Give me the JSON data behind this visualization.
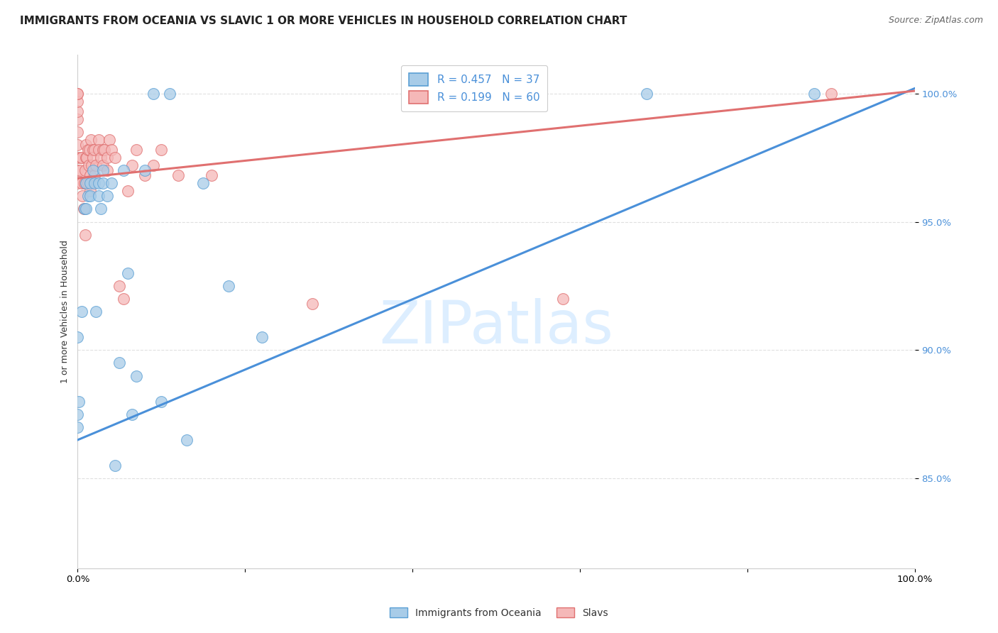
{
  "title": "IMMIGRANTS FROM OCEANIA VS SLAVIC 1 OR MORE VEHICLES IN HOUSEHOLD CORRELATION CHART",
  "source": "Source: ZipAtlas.com",
  "ylabel": "1 or more Vehicles in Household",
  "watermark": "ZIPatlas",
  "xlim": [
    0.0,
    1.0
  ],
  "ylim": [
    0.815,
    1.015
  ],
  "yticks": [
    0.85,
    0.9,
    0.95,
    1.0
  ],
  "ytick_labels": [
    "85.0%",
    "90.0%",
    "95.0%",
    "100.0%"
  ],
  "xticks": [
    0.0,
    0.2,
    0.4,
    0.6,
    0.8,
    1.0
  ],
  "xtick_labels": [
    "0.0%",
    "",
    "",
    "",
    "",
    "100.0%"
  ],
  "legend1_label": "R = 0.457   N = 37",
  "legend2_label": "R = 0.199   N = 60",
  "blue_color": "#a8cce8",
  "pink_color": "#f5b8b8",
  "blue_edge_color": "#5a9fd4",
  "pink_edge_color": "#e07070",
  "blue_line_color": "#4a90d9",
  "pink_line_color": "#e07070",
  "blue_label_color": "#4a90d9",
  "blue_scatter_x": [
    0.0,
    0.0,
    0.0,
    0.001,
    0.005,
    0.008,
    0.01,
    0.01,
    0.012,
    0.015,
    0.015,
    0.018,
    0.02,
    0.022,
    0.025,
    0.025,
    0.028,
    0.03,
    0.03,
    0.035,
    0.04,
    0.045,
    0.05,
    0.055,
    0.06,
    0.065,
    0.07,
    0.08,
    0.09,
    0.1,
    0.11,
    0.13,
    0.15,
    0.18,
    0.22,
    0.68,
    0.88
  ],
  "blue_scatter_y": [
    0.905,
    0.875,
    0.87,
    0.88,
    0.915,
    0.955,
    0.955,
    0.965,
    0.96,
    0.96,
    0.965,
    0.97,
    0.965,
    0.915,
    0.965,
    0.96,
    0.955,
    0.97,
    0.965,
    0.96,
    0.965,
    0.855,
    0.895,
    0.97,
    0.93,
    0.875,
    0.89,
    0.97,
    1.0,
    0.88,
    1.0,
    0.865,
    0.965,
    0.925,
    0.905,
    1.0,
    1.0
  ],
  "pink_scatter_x": [
    0.0,
    0.0,
    0.0,
    0.0,
    0.0,
    0.0,
    0.0,
    0.0,
    0.0,
    0.0,
    0.003,
    0.004,
    0.005,
    0.005,
    0.006,
    0.007,
    0.008,
    0.009,
    0.009,
    0.01,
    0.01,
    0.01,
    0.011,
    0.012,
    0.012,
    0.013,
    0.014,
    0.015,
    0.015,
    0.016,
    0.017,
    0.018,
    0.018,
    0.02,
    0.02,
    0.022,
    0.025,
    0.025,
    0.028,
    0.03,
    0.03,
    0.032,
    0.035,
    0.035,
    0.038,
    0.04,
    0.045,
    0.05,
    0.055,
    0.06,
    0.065,
    0.07,
    0.08,
    0.09,
    0.1,
    0.12,
    0.16,
    0.28,
    0.58,
    0.9
  ],
  "pink_scatter_y": [
    0.965,
    0.97,
    0.975,
    0.98,
    0.985,
    0.99,
    0.993,
    0.997,
    1.0,
    1.0,
    0.97,
    0.975,
    0.965,
    0.975,
    0.96,
    0.955,
    0.965,
    0.945,
    0.97,
    0.965,
    0.975,
    0.98,
    0.975,
    0.965,
    0.978,
    0.972,
    0.978,
    0.962,
    0.968,
    0.982,
    0.972,
    0.978,
    0.975,
    0.968,
    0.978,
    0.972,
    0.982,
    0.978,
    0.975,
    0.978,
    0.972,
    0.978,
    0.97,
    0.975,
    0.982,
    0.978,
    0.975,
    0.925,
    0.92,
    0.962,
    0.972,
    0.978,
    0.968,
    0.972,
    0.978,
    0.968,
    0.968,
    0.918,
    0.92,
    1.0
  ],
  "blue_trend_y_start": 0.865,
  "blue_trend_y_end": 1.002,
  "pink_trend_y_start": 0.967,
  "pink_trend_y_end": 1.001,
  "title_fontsize": 11,
  "source_fontsize": 9,
  "axis_label_fontsize": 9,
  "tick_fontsize": 9.5,
  "legend_fontsize": 11,
  "watermark_fontsize": 60,
  "watermark_color": "#ddeeff",
  "background_color": "#ffffff",
  "grid_color": "#e0e0e0"
}
